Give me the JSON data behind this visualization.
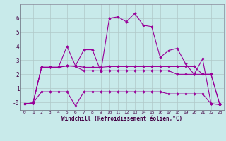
{
  "xlabel": "Windchill (Refroidissement éolien,°C)",
  "background_color": "#c8eaea",
  "grid_color": "#b0c8c8",
  "line_color": "#990099",
  "x_ticks": [
    0,
    1,
    2,
    3,
    4,
    5,
    6,
    7,
    8,
    9,
    10,
    11,
    12,
    13,
    14,
    15,
    16,
    17,
    18,
    19,
    20,
    21,
    22,
    23
  ],
  "y_ticks": [
    0,
    1,
    2,
    3,
    4,
    5,
    6
  ],
  "ylim": [
    -0.55,
    7.0
  ],
  "xlim": [
    -0.5,
    23.5
  ],
  "series": [
    {
      "x": [
        0,
        1,
        2,
        3,
        4,
        5,
        6,
        7,
        8,
        9,
        10,
        11,
        12,
        13,
        14,
        15,
        16,
        17,
        18,
        19,
        20,
        21,
        22,
        23
      ],
      "y": [
        -0.1,
        -0.05,
        2.5,
        2.5,
        2.5,
        4.0,
        2.6,
        3.75,
        3.75,
        2.2,
        6.0,
        6.1,
        5.75,
        6.35,
        5.5,
        5.4,
        3.2,
        3.7,
        3.85,
        2.75,
        2.0,
        3.1,
        -0.1,
        -0.15
      ]
    },
    {
      "x": [
        0,
        1,
        2,
        3,
        4,
        5,
        6,
        7,
        8,
        9,
        10,
        11,
        12,
        13,
        14,
        15,
        16,
        17,
        18,
        19,
        20,
        21,
        22,
        23
      ],
      "y": [
        -0.1,
        -0.05,
        2.5,
        2.5,
        2.5,
        2.6,
        2.6,
        2.5,
        2.5,
        2.5,
        2.55,
        2.55,
        2.55,
        2.55,
        2.55,
        2.55,
        2.55,
        2.55,
        2.55,
        2.55,
        2.55,
        2.0,
        2.0,
        -0.1
      ]
    },
    {
      "x": [
        0,
        1,
        2,
        3,
        4,
        5,
        6,
        7,
        8,
        9,
        10,
        11,
        12,
        13,
        14,
        15,
        16,
        17,
        18,
        19,
        20,
        21,
        22,
        23
      ],
      "y": [
        -0.1,
        -0.05,
        2.5,
        2.5,
        2.5,
        2.6,
        2.55,
        2.25,
        2.25,
        2.25,
        2.25,
        2.25,
        2.25,
        2.25,
        2.25,
        2.25,
        2.25,
        2.25,
        2.0,
        2.0,
        2.0,
        2.0,
        2.0,
        -0.1
      ]
    },
    {
      "x": [
        0,
        1,
        2,
        3,
        4,
        5,
        6,
        7,
        8,
        9,
        10,
        11,
        12,
        13,
        14,
        15,
        16,
        17,
        18,
        19,
        20,
        21,
        22,
        23
      ],
      "y": [
        -0.1,
        -0.05,
        0.75,
        0.75,
        0.75,
        0.75,
        -0.25,
        0.75,
        0.75,
        0.75,
        0.75,
        0.75,
        0.75,
        0.75,
        0.75,
        0.75,
        0.75,
        0.6,
        0.6,
        0.6,
        0.6,
        0.6,
        -0.1,
        -0.15
      ]
    }
  ]
}
